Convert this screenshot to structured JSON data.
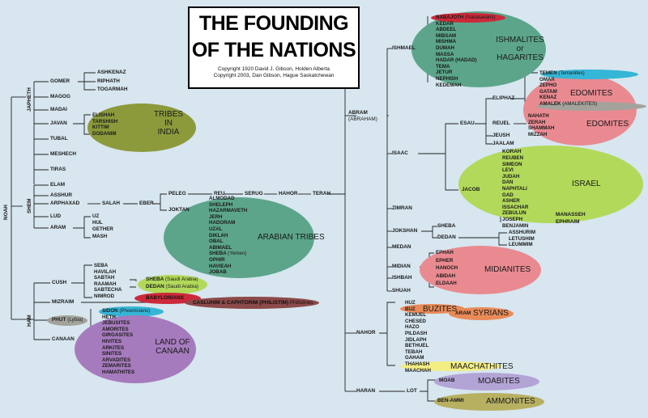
{
  "title": {
    "line1": "THE FOUNDING",
    "line2": "OF THE NATIONS"
  },
  "copyright": {
    "line1": "Copyright 1920 David J. Gibson, Holden Alberta",
    "line2": "Copyright 2003, Dan Gibson, Hague Saskatchewan"
  },
  "noah": "NOAH",
  "japheth": {
    "name": "JAPHETH",
    "sons": [
      "GOMER",
      "MAGOG",
      "MADAI",
      "JAVAN",
      "TUBAL",
      "MESHECH",
      "TIRAS"
    ],
    "gomer_sons": [
      "ASHKENAZ",
      "RIPHATH",
      "TOGARMAH"
    ],
    "javan_sons": [
      "ELISHAH",
      "TARSHISH",
      "KITTIM",
      "DODANIM"
    ],
    "tribes_india": "TRIBES\nIN\nINDIA"
  },
  "shem": {
    "name": "SHEM",
    "sons": [
      "ELAM",
      "ASSHUR",
      "ARPHAXAD",
      "LUD",
      "ARAM"
    ],
    "salah": "SALAH",
    "eber": "EBER",
    "peleg": "PELEG",
    "reu": "REU",
    "serug": "SERUG",
    "hahor": "HAHOR",
    "terah": "TERAH",
    "joktan": "JOKTAN",
    "aram_sons": [
      "UZ",
      "HUL",
      "GETHER",
      "MASH"
    ],
    "joktan_sons": [
      "ALMODAD",
      "SHELEPH",
      "HAZARMAVETH",
      "JERH",
      "HADORAM",
      "UZAL",
      "DIKLAH",
      "OBAL",
      "ABIMAEL",
      "SHEBA",
      "OPHIR",
      "HAVIEAH",
      "JOBAB"
    ],
    "sheba_note": "(Yemen)",
    "arabian": "ARABIAN TRIBES"
  },
  "ham": {
    "name": "HAM",
    "sons": [
      "CUSH",
      "MIZRAIM",
      "PHUT",
      "CANAAN"
    ],
    "phut_note": "(Lybia)",
    "cush_sons": [
      "SEBA",
      "HAVILAH",
      "SABTAH",
      "RAAMAH",
      "SABTECHA",
      "NIMROD"
    ],
    "sheba": "SHEBA",
    "sheba_note": "(Saudi Arabia)",
    "dedan": "DEDAN",
    "dedan_note": "(Saudi Arabia)",
    "babylonians": "BABYLONIANS",
    "casluhim": "CASLUHIM & CAPHTORIM (PHILISTIM)",
    "casluhim_note": "Philistines",
    "canaan_sons": [
      "SIDON",
      "HETH",
      "JEBUSITES",
      "AMORITES",
      "GIRGASITES",
      "HIVITES",
      "ARKITES",
      "SINITES",
      "ARVADITES",
      "ZEMARITES",
      "HAMATHITES"
    ],
    "sidon_note": "(Phoenicians)",
    "land_of_canaan": "LAND OF\nCANAAN"
  },
  "abram": {
    "name": "ABRAM",
    "alt": "(ABRAHAM)",
    "sons": [
      "ISHMAEL",
      "ISAAC",
      "ZIMRAN",
      "JOKSHAN",
      "MEDAN",
      "MIDIAN",
      "ISHBAH",
      "SHUAH"
    ]
  },
  "ishmael_sons": [
    "NABAJOTH",
    "KEDAR",
    "ABDEEL",
    "MIBSAM",
    "MISHMA",
    "DUMAH",
    "MASSA",
    "HADAR (HADAD)",
    "TEMA",
    "JETUR",
    "NEPHISH",
    "KEDEMAH"
  ],
  "nabajoth_note": "(Nabataeans)",
  "ishmaelites": "ISHMALITES\nor\nHAGARITES",
  "esau": "ESAU",
  "eliphaz": "ELIPHAZ",
  "eliphaz_sons": [
    "TEMEN",
    "OMAR",
    "ZEPHO",
    "GATAM",
    "KENAZ",
    "AMALEK"
  ],
  "temen_note": "(Temanites)",
  "amalek_note": "(AMALEKITES)",
  "edomites": "EDOMITES",
  "reuel": "REUEL",
  "reuel_sons": [
    "NAHATH",
    "ZERAH",
    "SHAMMAH",
    "MIZZAH"
  ],
  "esau_other": [
    "JEUSH",
    "JAALAM",
    "KORAH"
  ],
  "jacob": "JACOB",
  "jacob_sons": [
    "REUBEN",
    "SIMEON",
    "LEVI",
    "JUDAH",
    "DAN",
    "NAPHTALI",
    "GAD",
    "ASHER",
    "ISSACHAR",
    "ZEBULUN",
    "JOSEPH",
    "BENJAMIN"
  ],
  "joseph_sons": [
    "MANASSEH",
    "EPHRAIM"
  ],
  "israel": "ISRAEL",
  "jokshan_sons": [
    "SHEBA",
    "DEDAN"
  ],
  "dedan_sons": [
    "ASSHURIM",
    "LETUSHIM",
    "LEUMMIM"
  ],
  "midian_sons": [
    "EPHAH",
    "EPHER",
    "HANOCH",
    "ABIDAH",
    "ELDAAH"
  ],
  "midianites": "MIDIANITES",
  "nahor": "NAHOR",
  "nahor_sons": [
    "HUZ",
    "BUZ",
    "KEMUEL",
    "CHESED",
    "HAZO",
    "PILDASH",
    "JIDLAPH",
    "BETHUEL",
    "TEBAH",
    "GAHAM",
    "THAHASH",
    "MAACHAH"
  ],
  "buzites": "BUZITES",
  "aram_syr": "ARAM",
  "syrians": "SYRIANS",
  "maachathites": "MAACHATHITES",
  "haran": "HARAN",
  "lot": "LOT",
  "moab": "MOAB",
  "moabites": "MOABITES",
  "benammi": "BEN-AMMI",
  "ammonites": "AMMONITES",
  "colors": {
    "background": "#d7e6ef",
    "green": "#8ab85a",
    "olive": "#8c9a3c",
    "teal": "#5ca58a",
    "pink": "#e98a91",
    "purple": "#a67bbd",
    "red": "#cc2a3a",
    "maroon": "#8c4a4a",
    "cyan": "#35b6d6",
    "lime": "#b2d95a",
    "yellow": "#f3ee84",
    "lavender": "#b3a4d6",
    "orange": "#e98a57",
    "khaki": "#b7b061",
    "gray": "#a3a39c"
  }
}
